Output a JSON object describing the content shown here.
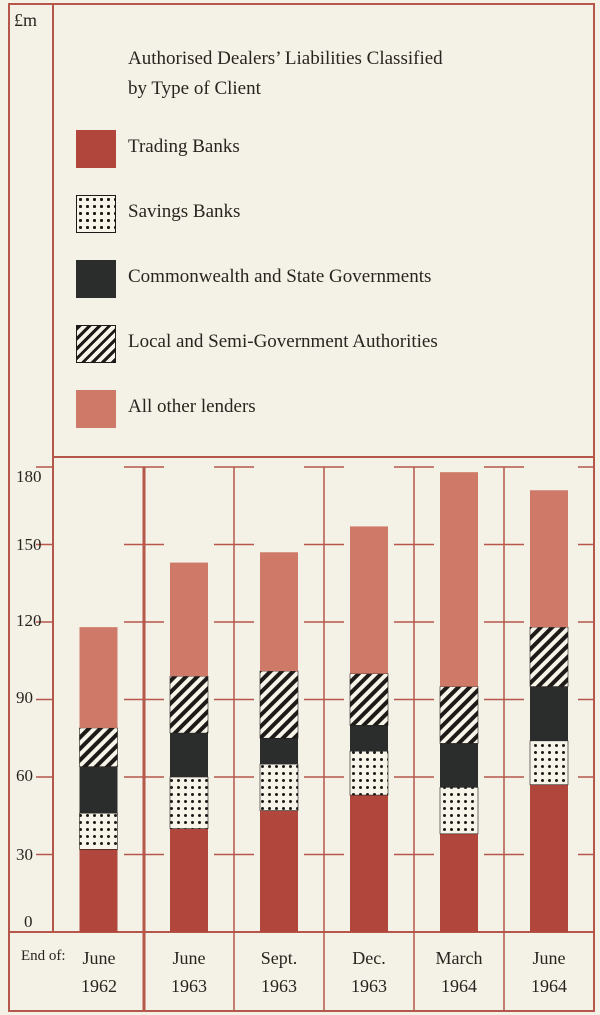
{
  "chart_data": {
    "type": "bar",
    "stacked": true,
    "title": "Authorised Dealers’ Liabilities Classified by Type of Client",
    "title_lines": [
      "Authorised Dealers’ Liabilities Classified",
      "by Type of Client"
    ],
    "ylabel": "£m",
    "ylim": [
      0,
      180
    ],
    "yticks": [
      "180",
      "150",
      "120",
      "90",
      "60",
      "30",
      "0"
    ],
    "x_prefix": "End of:",
    "categories": [
      {
        "month": "June",
        "year": "1962"
      },
      {
        "month": "June",
        "year": "1963"
      },
      {
        "month": "Sept.",
        "year": "1963"
      },
      {
        "month": "Dec.",
        "year": "1963"
      },
      {
        "month": "March",
        "year": "1964"
      },
      {
        "month": "June",
        "year": "1964"
      }
    ],
    "series": [
      {
        "name": "Trading Banks",
        "values": [
          32,
          40,
          47,
          53,
          38,
          57
        ],
        "color": "#b1473c",
        "pattern": "solid"
      },
      {
        "name": "Savings Banks",
        "values": [
          14,
          20,
          18,
          17,
          18,
          17
        ],
        "color": "#1e1a18",
        "pattern": "dots"
      },
      {
        "name": "Commonwealth and State Governments",
        "values": [
          18,
          17,
          10,
          10,
          17,
          21
        ],
        "color": "#2b2d2c",
        "pattern": "solid"
      },
      {
        "name": "Local and Semi-Government Authorities",
        "values": [
          15,
          22,
          26,
          20,
          22,
          23
        ],
        "color": "#1e1a18",
        "pattern": "hatch"
      },
      {
        "name": "All other lenders",
        "values": [
          39,
          44,
          46,
          57,
          83,
          53
        ],
        "color": "#cf7a68",
        "pattern": "solid"
      }
    ],
    "legend_position": "top",
    "grid": false
  }
}
